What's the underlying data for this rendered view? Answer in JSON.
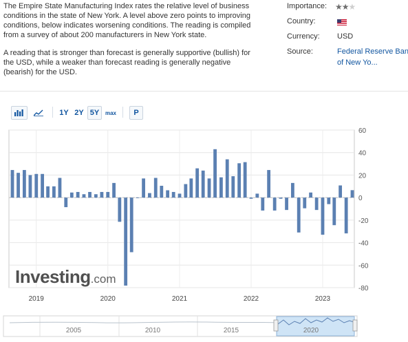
{
  "description": {
    "p1": "The Empire State Manufacturing Index rates the relative level of business conditions in the state of New York. A level above zero points to improving conditions, below indicates worsening conditions. The reading is compiled from a survey of about 200 manufacturers in New York state.",
    "p2": "A reading that is stronger than forecast is generally supportive (bullish) for the USD, while a weaker than forecast reading is generally negative (bearish) for the USD."
  },
  "info": {
    "importance_label": "Importance:",
    "importance_stars": 2,
    "importance_max": 3,
    "country_label": "Country:",
    "country_flag": "us-flag-icon",
    "currency_label": "Currency:",
    "currency_value": "USD",
    "source_label": "Source:",
    "source_value_line1": "Federal Reserve Bank",
    "source_value_line2": "of New Yo...",
    "link_color": "#1256a0"
  },
  "toolbar": {
    "bar_icon": "bar-chart-icon",
    "line_icon": "line-chart-icon",
    "range_1y": "1Y",
    "range_2y": "2Y",
    "range_5y": "5Y",
    "range_max": "max",
    "range_selected": "5Y",
    "p_label": "P"
  },
  "watermark": {
    "brand": "Investing",
    "suffix": ".com"
  },
  "navigator": {
    "years": [
      "2005",
      "2010",
      "2015",
      "2020"
    ]
  },
  "chart_data": {
    "type": "bar",
    "title": "",
    "xlabel": "",
    "ylabel": "",
    "ylim": [
      -80,
      60
    ],
    "yticks": [
      60,
      40,
      20,
      0,
      -20,
      -40,
      -60,
      -80
    ],
    "xticks": [
      "2019",
      "2020",
      "2021",
      "2022",
      "2023"
    ],
    "bar_color": "#5b80b2",
    "grid": true,
    "x": [
      "2018-09",
      "2018-10",
      "2018-11",
      "2018-12",
      "2019-01",
      "2019-02",
      "2019-03",
      "2019-04",
      "2019-05",
      "2019-06",
      "2019-07",
      "2019-08",
      "2019-09",
      "2019-10",
      "2019-11",
      "2019-12",
      "2020-01",
      "2020-02",
      "2020-03",
      "2020-04",
      "2020-05",
      "2020-06",
      "2020-07",
      "2020-08",
      "2020-09",
      "2020-10",
      "2020-11",
      "2020-12",
      "2021-01",
      "2021-02",
      "2021-03",
      "2021-04",
      "2021-05",
      "2021-06",
      "2021-07",
      "2021-08",
      "2021-09",
      "2021-10",
      "2021-11",
      "2021-12",
      "2022-01",
      "2022-02",
      "2022-03",
      "2022-04",
      "2022-05",
      "2022-06",
      "2022-07",
      "2022-08",
      "2022-09",
      "2022-10",
      "2022-11",
      "2022-12",
      "2023-01",
      "2023-02",
      "2023-03",
      "2023-04",
      "2023-05",
      "2023-06"
    ],
    "values": [
      24.5,
      22,
      24.5,
      20,
      21,
      21,
      10,
      10,
      17.5,
      -8.5,
      4.5,
      5,
      3,
      5,
      3,
      5,
      5,
      13,
      -21.5,
      -78.2,
      -48.5,
      0,
      17,
      4,
      17.5,
      10.5,
      6.5,
      5,
      3.5,
      12,
      17,
      26,
      24,
      17,
      43,
      18,
      34,
      19,
      30.5,
      31.5,
      -1,
      3.5,
      -11.5,
      24.5,
      -11.5,
      -1,
      -11,
      13,
      -31,
      -9.5,
      4.5,
      -11,
      -33,
      -5.8,
      -24.5,
      10.8,
      -31.8,
      6.6
    ]
  }
}
